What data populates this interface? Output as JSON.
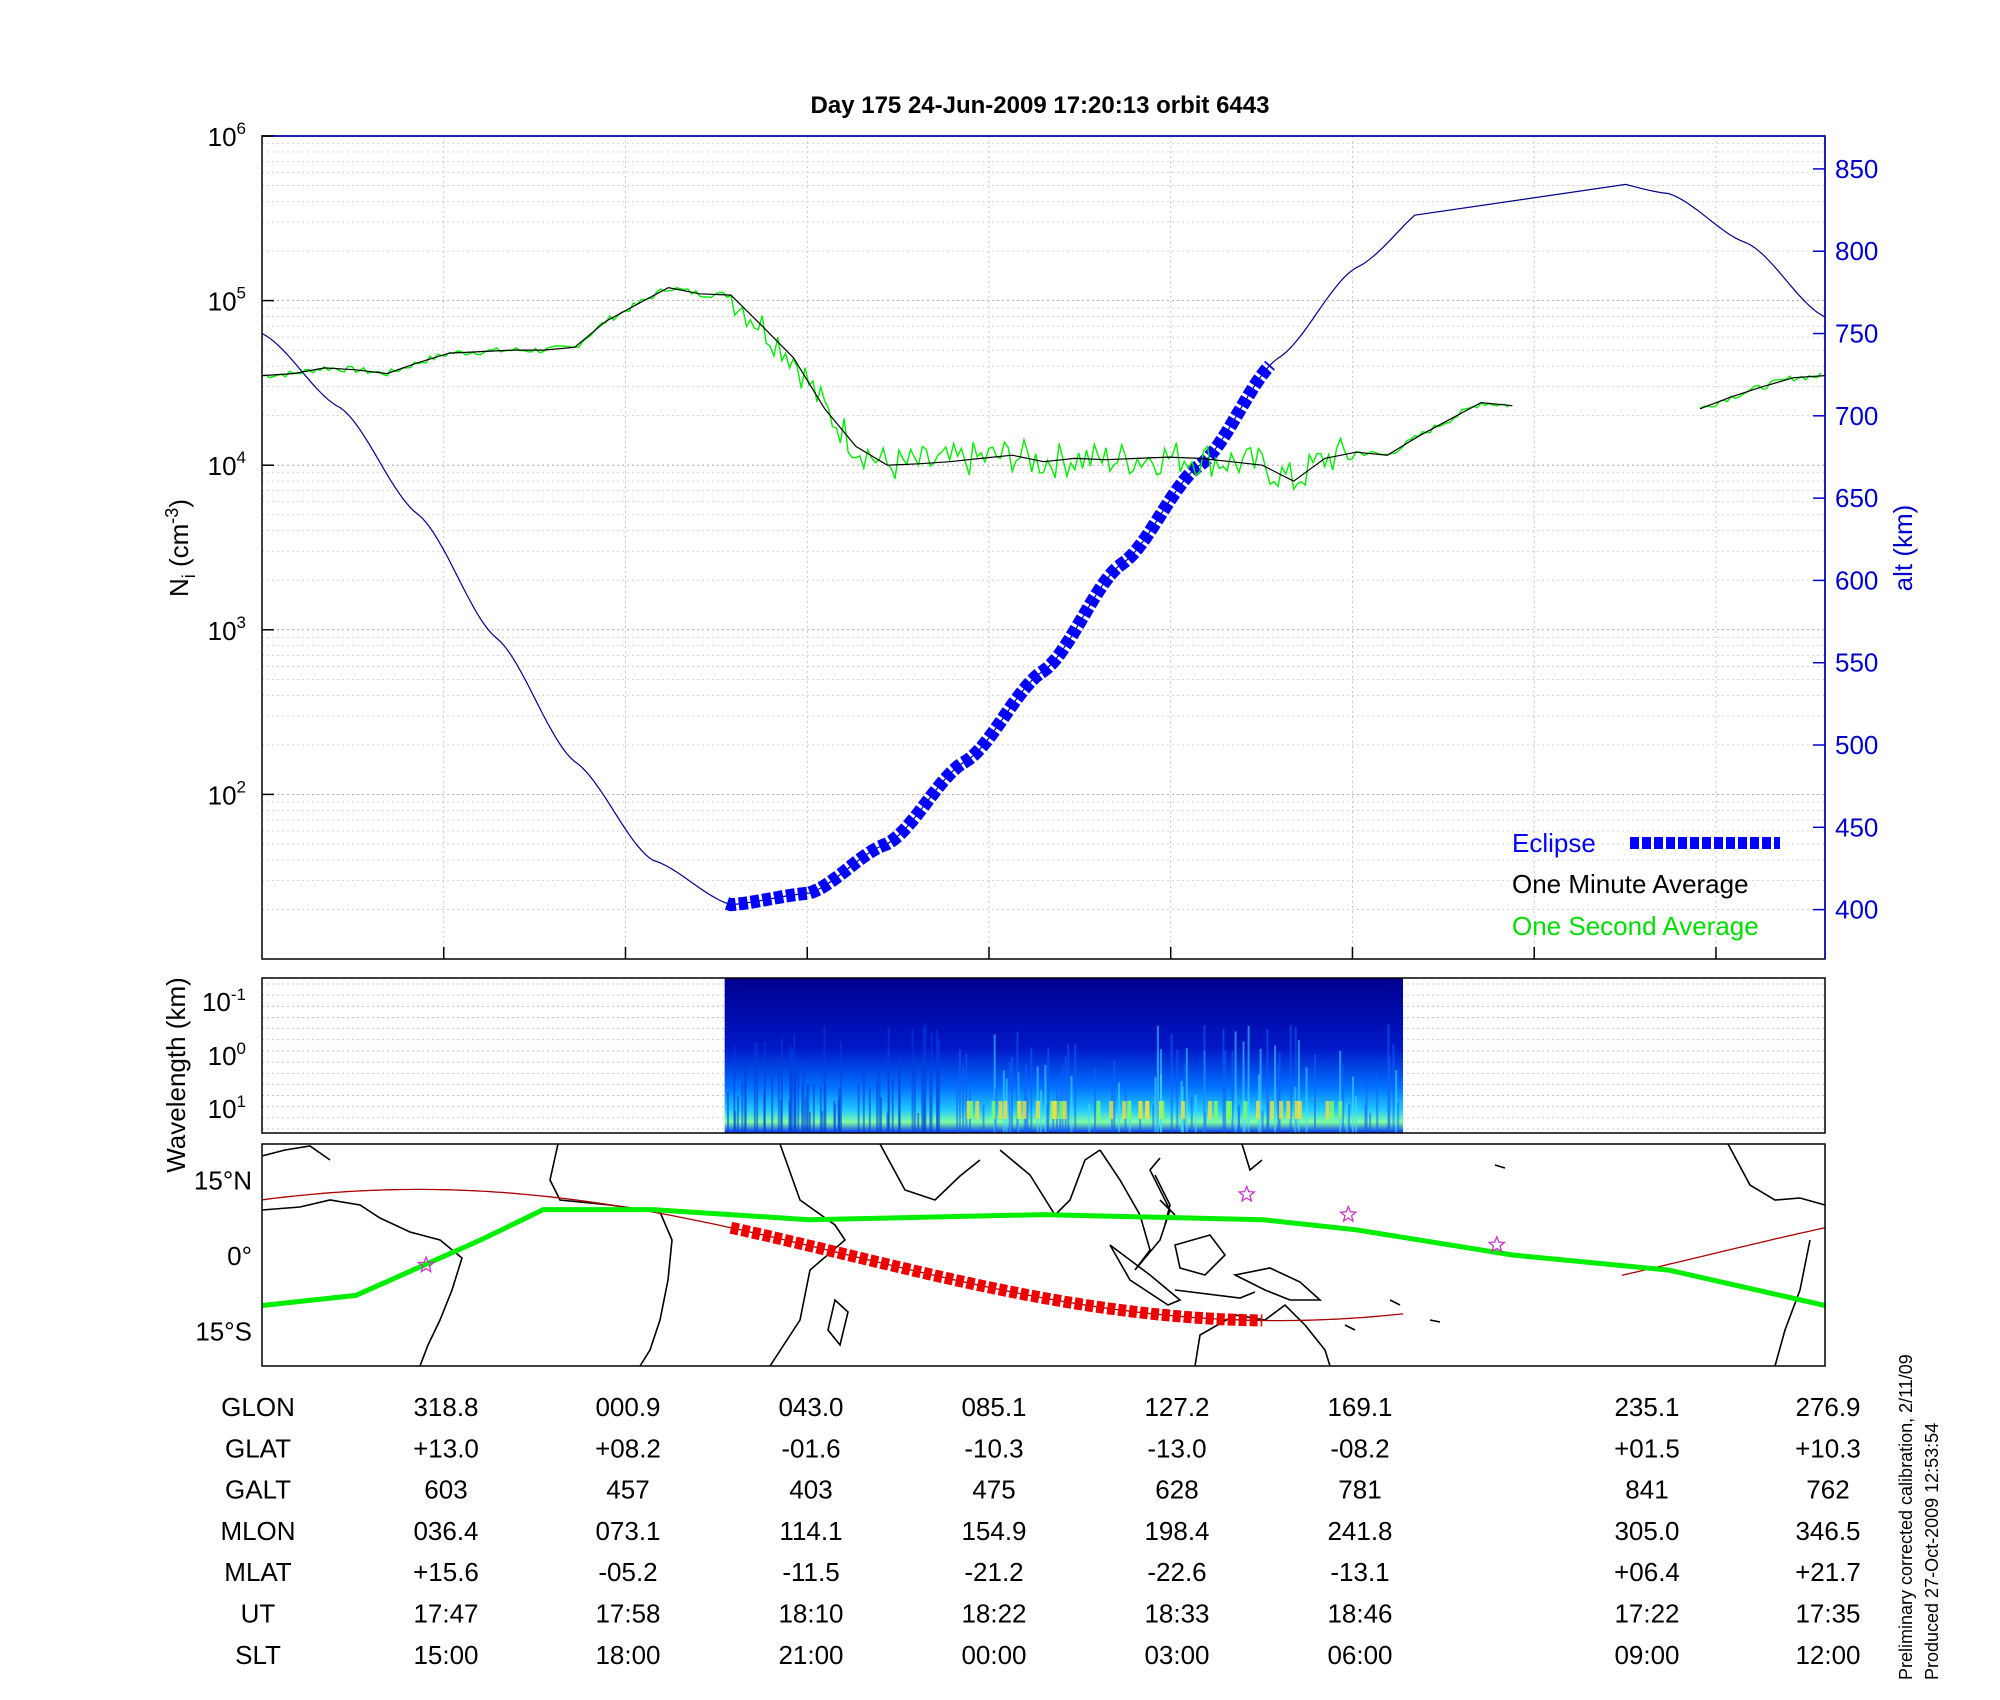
{
  "title": "Day 175  24-Jun-2009 17:20:13   orbit 6443",
  "footnote": {
    "line1": "Preliminary corrected calibration, 2/11/09",
    "line2": "Produced 27-Oct-2009 12:53:54"
  },
  "colors": {
    "eclipse": "#0000ff",
    "one_minute": "#000000",
    "one_second": "#00ee00",
    "altitude": "#00008b",
    "axis_right": "#0000cc",
    "track": "#aa0000",
    "magnetic_equator": "#00ee00",
    "eclipse_track": "#ee0000",
    "stars": "#cc33cc"
  },
  "chart_data": [
    {
      "type": "line",
      "panel": "ion-density",
      "ylabel": "N_i (cm^-3)",
      "ylabel_base": "N",
      "ylabel_sub": "i",
      "ylabel_units": " (cm",
      "ylabel_exp": "-3",
      "ylabel_close": ")",
      "y_scale": "log",
      "ylim": [
        10,
        1000000
      ],
      "y_ticks": [
        {
          "base": "10",
          "exp": "6",
          "value": 1000000
        },
        {
          "base": "10",
          "exp": "5",
          "value": 100000
        },
        {
          "base": "10",
          "exp": "4",
          "value": 10000
        },
        {
          "base": "10",
          "exp": "3",
          "value": 1000
        },
        {
          "base": "10",
          "exp": "2",
          "value": 100
        }
      ],
      "y2label": "alt (km)",
      "y2lim": [
        370,
        870
      ],
      "y2_ticks": [
        850,
        800,
        750,
        700,
        650,
        600,
        550,
        500,
        450,
        400
      ],
      "xlim": [
        0,
        1
      ],
      "grid": true,
      "legend_position": "bottom-right",
      "legend": [
        "Eclipse",
        "One Minute Average",
        "One Second Average"
      ],
      "series": [
        {
          "name": "One Minute Average",
          "axis": "left",
          "x": [
            0,
            0.02,
            0.04,
            0.06,
            0.08,
            0.1,
            0.12,
            0.14,
            0.16,
            0.18,
            0.2,
            0.22,
            0.24,
            0.26,
            0.28,
            0.3,
            0.32,
            0.34,
            0.36,
            0.38,
            0.4,
            0.42,
            0.44,
            0.46,
            0.48,
            0.5,
            0.52,
            0.54,
            0.56,
            0.58,
            0.6,
            0.62,
            0.64,
            0.66,
            0.68,
            0.7,
            0.72,
            0.74,
            0.76,
            0.78,
            0.8,
            0.82,
            0.8,
            0.86,
            0.88,
            0.9,
            0.92,
            0.94,
            0.96,
            0.98,
            1.0
          ],
          "y": [
            35000,
            36000,
            39000,
            38000,
            36000,
            42000,
            48000,
            49000,
            50000,
            50000,
            52000,
            75000,
            95000,
            120000,
            110000,
            108000,
            70000,
            45000,
            22000,
            13000,
            10000,
            10200,
            10500,
            11000,
            11500,
            10500,
            11000,
            10800,
            11000,
            11200,
            11000,
            10500,
            10000,
            8000,
            11000,
            12000,
            11500,
            15000,
            19000,
            24000,
            23000,
            null,
            null,
            null,
            null,
            null,
            22000,
            26000,
            30000,
            34000,
            35000
          ]
        },
        {
          "name": "altitude",
          "axis": "right",
          "x": [
            0,
            0.05,
            0.1,
            0.15,
            0.2,
            0.25,
            0.3,
            0.35,
            0.4,
            0.45,
            0.5,
            0.55,
            0.6,
            0.65,
            0.7,
            0.75,
            0.8,
            0.85,
            0.9,
            0.95,
            1.0
          ],
          "y": [
            750,
            705,
            640,
            565,
            490,
            430,
            403,
            410,
            440,
            490,
            545,
            610,
            670,
            735,
            790,
            830,
            845,
            845,
            835,
            805,
            760
          ]
        }
      ]
    },
    {
      "type": "heatmap",
      "panel": "spectrogram",
      "ylabel": "Wavelength (km)",
      "y_scale": "log",
      "y_ticks": [
        {
          "base": "10",
          "exp": "-1"
        },
        {
          "base": "10",
          "exp": "0"
        },
        {
          "base": "10",
          "exp": "1"
        }
      ],
      "x_extent": [
        0.296,
        0.73
      ]
    },
    {
      "type": "line",
      "panel": "ground-track-map",
      "y_ticks": [
        "15°N",
        "0°",
        "15°S"
      ],
      "ylim": [
        -22,
        22
      ],
      "series": [
        {
          "name": "magnetic equator",
          "x": [
            0,
            0.06,
            0.14,
            0.18,
            0.25,
            0.35,
            0.5,
            0.64,
            0.7,
            0.8,
            0.9,
            1.0
          ],
          "y": [
            -10,
            -8,
            3,
            9,
            9,
            7,
            8,
            7,
            5,
            0,
            -3,
            -10
          ]
        }
      ],
      "stars": [
        {
          "x": 0.105,
          "y": -2
        },
        {
          "x": 0.63,
          "y": 12
        },
        {
          "x": 0.695,
          "y": 8
        },
        {
          "x": 0.79,
          "y": 2
        }
      ]
    },
    {
      "type": "table",
      "panel": "orbit-parameters",
      "row_labels": [
        "GLON",
        "GLAT",
        "GALT",
        "MLON",
        "MLAT",
        "UT",
        "SLT"
      ],
      "columns": [
        [
          "318.8",
          "+13.0",
          "603",
          "036.4",
          "+15.6",
          "17:47",
          "15:00"
        ],
        [
          "000.9",
          "+08.2",
          "457",
          "073.1",
          "-05.2",
          "17:58",
          "18:00"
        ],
        [
          "043.0",
          "-01.6",
          "403",
          "114.1",
          "-11.5",
          "18:10",
          "21:00"
        ],
        [
          "085.1",
          "-10.3",
          "475",
          "154.9",
          "-21.2",
          "18:22",
          "00:00"
        ],
        [
          "127.2",
          "-13.0",
          "628",
          "198.4",
          "-22.6",
          "18:33",
          "03:00"
        ],
        [
          "169.1",
          "-08.2",
          "781",
          "241.8",
          "-13.1",
          "18:46",
          "06:00"
        ],
        [
          "235.1",
          "+01.5",
          "841",
          "305.0",
          "+06.4",
          "17:22",
          "09:00"
        ],
        [
          "276.9",
          "+10.3",
          "762",
          "346.5",
          "+21.7",
          "17:35",
          "12:00"
        ]
      ]
    }
  ]
}
